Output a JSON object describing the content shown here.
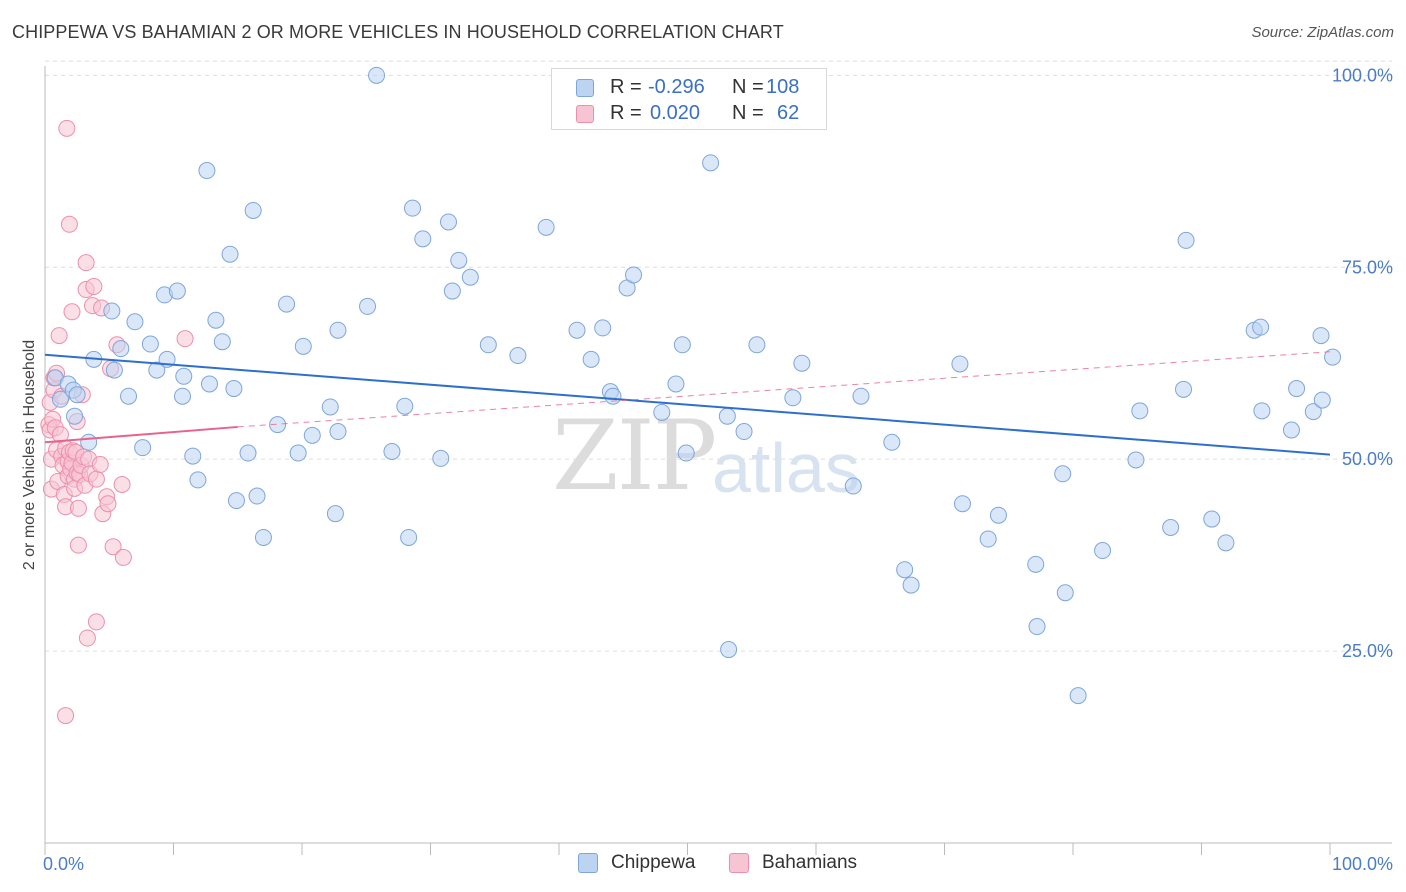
{
  "title": "CHIPPEWA VS BAHAMIAN 2 OR MORE VEHICLES IN HOUSEHOLD CORRELATION CHART",
  "source": "Source: ZipAtlas.com",
  "watermark": {
    "zip": "ZIP",
    "atlas": "atlas"
  },
  "legend": {
    "rows": [
      {
        "r_label": "R =",
        "r_value": "-0.296",
        "n_label": "N =",
        "n_value": "108"
      },
      {
        "r_label": "R =",
        "r_value": "0.020",
        "n_label": "N =",
        "n_value": "62"
      }
    ]
  },
  "colors": {
    "chippewa_fill": "#bcd3f2",
    "chippewa_stroke": "#7ea6dc",
    "chippewa_line": "#2f6fcc",
    "bahamian_fill": "#f7c4d3",
    "bahamian_stroke": "#ee8fab",
    "bahamian_line": "#e8638b",
    "grid": "#dddddd",
    "tick_label": "#4a7cc9"
  },
  "chart_data": {
    "type": "scatter",
    "title": "CHIPPEWA VS BAHAMIAN 2 OR MORE VEHICLES IN HOUSEHOLD CORRELATION CHART",
    "xlabel": "",
    "ylabel": "2 or more Vehicles in Household",
    "xlim": [
      0,
      100
    ],
    "ylim": [
      0,
      102
    ],
    "x_tick_labels": [
      "0.0%",
      "100.0%"
    ],
    "y_ticks": [
      25,
      50,
      75,
      100
    ],
    "y_tick_labels": [
      "25.0%",
      "50.0%",
      "75.0%",
      "100.0%"
    ],
    "legend_labels": [
      "Chippewa",
      "Bahamians"
    ],
    "series": [
      {
        "name": "Chippewa",
        "r": -0.296,
        "n": 108,
        "trend": {
          "x": [
            0,
            100
          ],
          "y": [
            63.6,
            50.6
          ]
        },
        "points": [
          [
            0.8,
            60.6
          ],
          [
            1.2,
            57.8
          ],
          [
            1.8,
            59.8
          ],
          [
            2.2,
            59.0
          ],
          [
            2.5,
            58.4
          ],
          [
            2.3,
            55.6
          ],
          [
            3.4,
            52.2
          ],
          [
            3.8,
            63.0
          ],
          [
            5.2,
            69.3
          ],
          [
            5.4,
            61.6
          ],
          [
            5.9,
            64.4
          ],
          [
            6.5,
            58.2
          ],
          [
            7.0,
            67.9
          ],
          [
            7.6,
            51.5
          ],
          [
            8.2,
            65.0
          ],
          [
            8.7,
            61.6
          ],
          [
            9.3,
            71.4
          ],
          [
            9.5,
            63.0
          ],
          [
            10.3,
            71.9
          ],
          [
            10.7,
            58.2
          ],
          [
            10.8,
            60.8
          ],
          [
            11.5,
            50.4
          ],
          [
            11.9,
            47.3
          ],
          [
            12.6,
            87.6
          ],
          [
            12.8,
            59.8
          ],
          [
            13.3,
            68.1
          ],
          [
            13.8,
            65.3
          ],
          [
            14.4,
            76.7
          ],
          [
            14.7,
            59.2
          ],
          [
            14.9,
            44.6
          ],
          [
            15.8,
            50.8
          ],
          [
            16.2,
            82.4
          ],
          [
            16.5,
            45.2
          ],
          [
            17.0,
            39.8
          ],
          [
            18.1,
            54.5
          ],
          [
            18.8,
            70.2
          ],
          [
            19.7,
            50.8
          ],
          [
            20.1,
            64.7
          ],
          [
            20.8,
            53.1
          ],
          [
            22.2,
            56.8
          ],
          [
            22.6,
            42.9
          ],
          [
            22.8,
            53.6
          ],
          [
            22.8,
            66.8
          ],
          [
            25.1,
            69.9
          ],
          [
            25.8,
            100.0
          ],
          [
            27.0,
            51.0
          ],
          [
            28.0,
            56.9
          ],
          [
            28.3,
            39.8
          ],
          [
            28.6,
            82.7
          ],
          [
            29.4,
            78.7
          ],
          [
            30.8,
            50.1
          ],
          [
            31.4,
            80.9
          ],
          [
            31.7,
            71.9
          ],
          [
            32.2,
            75.9
          ],
          [
            33.1,
            73.7
          ],
          [
            34.5,
            64.9
          ],
          [
            36.8,
            63.5
          ],
          [
            39.0,
            80.2
          ],
          [
            41.4,
            66.8
          ],
          [
            42.5,
            63.0
          ],
          [
            43.4,
            67.1
          ],
          [
            44.0,
            58.8
          ],
          [
            44.2,
            58.2
          ],
          [
            45.3,
            72.3
          ],
          [
            45.8,
            74.0
          ],
          [
            48.0,
            56.1
          ],
          [
            49.1,
            59.8
          ],
          [
            49.6,
            64.9
          ],
          [
            49.9,
            50.8
          ],
          [
            51.8,
            88.6
          ],
          [
            53.1,
            55.6
          ],
          [
            53.2,
            25.2
          ],
          [
            54.4,
            53.6
          ],
          [
            55.4,
            64.9
          ],
          [
            58.2,
            58.0
          ],
          [
            58.9,
            62.5
          ],
          [
            62.9,
            46.5
          ],
          [
            63.5,
            58.2
          ],
          [
            65.9,
            52.2
          ],
          [
            66.9,
            35.6
          ],
          [
            67.4,
            33.6
          ],
          [
            71.2,
            62.4
          ],
          [
            71.4,
            44.2
          ],
          [
            73.4,
            39.6
          ],
          [
            74.2,
            42.7
          ],
          [
            77.1,
            36.3
          ],
          [
            77.2,
            28.2
          ],
          [
            79.2,
            48.1
          ],
          [
            79.4,
            32.6
          ],
          [
            80.4,
            19.2
          ],
          [
            82.3,
            38.1
          ],
          [
            84.9,
            49.9
          ],
          [
            85.2,
            56.3
          ],
          [
            87.6,
            41.1
          ],
          [
            88.6,
            59.1
          ],
          [
            88.8,
            78.5
          ],
          [
            90.8,
            42.2
          ],
          [
            91.9,
            39.1
          ],
          [
            94.1,
            66.8
          ],
          [
            94.6,
            67.2
          ],
          [
            94.7,
            56.3
          ],
          [
            97.0,
            53.8
          ],
          [
            97.4,
            59.2
          ],
          [
            98.7,
            56.2
          ],
          [
            99.4,
            57.7
          ],
          [
            99.3,
            66.1
          ],
          [
            100.2,
            63.3
          ]
        ]
      },
      {
        "name": "Bahamians",
        "r": 0.02,
        "n": 62,
        "trend": {
          "x": [
            0,
            15
          ],
          "y": [
            52.2,
            54.2
          ],
          "dashed_to": [
            100,
            64.0
          ]
        },
        "points": [
          [
            0.3,
            54.5
          ],
          [
            0.4,
            57.4
          ],
          [
            0.4,
            53.8
          ],
          [
            0.5,
            50.0
          ],
          [
            0.5,
            46.1
          ],
          [
            0.6,
            55.2
          ],
          [
            0.7,
            59.0
          ],
          [
            0.7,
            60.6
          ],
          [
            0.8,
            54.1
          ],
          [
            0.9,
            61.2
          ],
          [
            0.9,
            51.2
          ],
          [
            1.0,
            47.1
          ],
          [
            1.1,
            66.1
          ],
          [
            1.2,
            53.2
          ],
          [
            1.3,
            58.2
          ],
          [
            1.3,
            50.4
          ],
          [
            1.4,
            49.2
          ],
          [
            1.5,
            45.4
          ],
          [
            1.6,
            43.8
          ],
          [
            1.6,
            51.4
          ],
          [
            1.6,
            16.6
          ],
          [
            1.7,
            93.1
          ],
          [
            1.8,
            49.7
          ],
          [
            1.8,
            47.8
          ],
          [
            1.9,
            50.9
          ],
          [
            1.9,
            80.6
          ],
          [
            2.0,
            48.7
          ],
          [
            2.1,
            69.2
          ],
          [
            2.1,
            49.5
          ],
          [
            2.2,
            51.1
          ],
          [
            2.3,
            47.4
          ],
          [
            2.3,
            46.2
          ],
          [
            2.4,
            50.9
          ],
          [
            2.5,
            54.9
          ],
          [
            2.5,
            48.2
          ],
          [
            2.6,
            43.6
          ],
          [
            2.6,
            38.8
          ],
          [
            2.7,
            48.0
          ],
          [
            2.8,
            49.2
          ],
          [
            2.9,
            58.4
          ],
          [
            3.0,
            50.3
          ],
          [
            3.1,
            46.6
          ],
          [
            3.2,
            72.1
          ],
          [
            3.2,
            75.6
          ],
          [
            3.3,
            26.7
          ],
          [
            3.4,
            50.0
          ],
          [
            3.5,
            48.1
          ],
          [
            3.7,
            70.0
          ],
          [
            3.8,
            72.5
          ],
          [
            4.0,
            47.4
          ],
          [
            4.0,
            28.8
          ],
          [
            4.3,
            49.3
          ],
          [
            4.4,
            69.7
          ],
          [
            4.5,
            42.9
          ],
          [
            4.8,
            45.1
          ],
          [
            4.9,
            44.2
          ],
          [
            5.1,
            61.8
          ],
          [
            5.3,
            38.6
          ],
          [
            5.6,
            64.9
          ],
          [
            6.0,
            46.7
          ],
          [
            6.1,
            37.2
          ],
          [
            10.9,
            65.7
          ]
        ]
      }
    ]
  }
}
